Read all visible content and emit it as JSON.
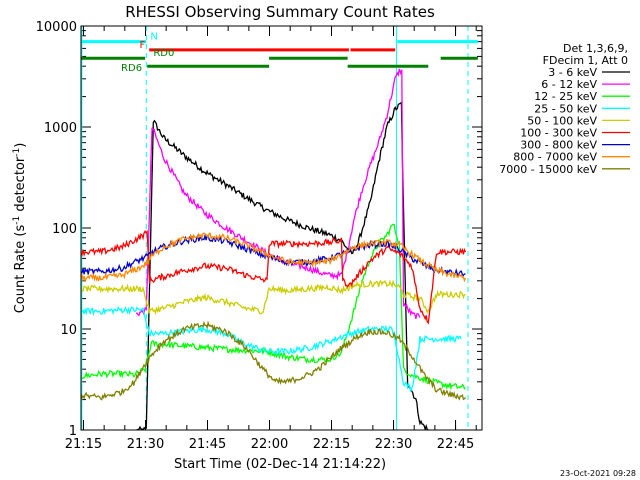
{
  "chart_data": {
    "type": "line",
    "title": "RHESSI Observing Summary Count Rates",
    "xlabel": "Start Time (02-Dec-14 21:14:22)",
    "ylabel_main": "Count Rate (s",
    "ylabel_sup1": "-1",
    "ylabel_mid": " detector",
    "ylabel_sup2": "-1",
    "ylabel_end": ")",
    "y_scale": "log",
    "x_range_minutes": [
      0,
      97
    ],
    "ylim": [
      1,
      10000
    ],
    "x_ticks": [
      {
        "label": "21:15",
        "t": 0.6
      },
      {
        "label": "21:30",
        "t": 15.6
      },
      {
        "label": "21:45",
        "t": 30.6
      },
      {
        "label": "22:00",
        "t": 45.6
      },
      {
        "label": "22:15",
        "t": 60.6
      },
      {
        "label": "22:30",
        "t": 75.6
      },
      {
        "label": "22:45",
        "t": 90.6
      }
    ],
    "y_ticks": [
      {
        "label": "1",
        "v": 1
      },
      {
        "label": "10",
        "v": 10
      },
      {
        "label": "100",
        "v": 100
      },
      {
        "label": "1000",
        "v": 1000
      },
      {
        "label": "10000",
        "v": 10000
      }
    ],
    "legend_header": [
      "Det 1,3,6,9,",
      "FDecim 1, Att 0"
    ],
    "series": [
      {
        "name": "3 - 6 keV",
        "color": "#000000",
        "points": [
          [
            13.5,
            1
          ],
          [
            15.8,
            1
          ],
          [
            17.5,
            1150
          ],
          [
            20,
            780
          ],
          [
            25,
            520
          ],
          [
            30,
            360
          ],
          [
            35,
            270
          ],
          [
            40,
            200
          ],
          [
            45,
            150
          ],
          [
            50,
            120
          ],
          [
            55,
            100
          ],
          [
            60,
            86
          ],
          [
            63,
            75
          ],
          [
            64.5,
            62
          ],
          [
            65.5,
            55
          ],
          [
            67,
            70
          ],
          [
            70,
            180
          ],
          [
            72,
            450
          ],
          [
            74,
            1000
          ],
          [
            76,
            1500
          ],
          [
            77.5,
            1700
          ],
          [
            78,
            150
          ],
          [
            79,
            3
          ],
          [
            81,
            2
          ],
          [
            82,
            1.2
          ],
          [
            84,
            1
          ]
        ]
      },
      {
        "name": "6 - 12 keV",
        "color": "#ff00ff",
        "points": [
          [
            13.3,
            14
          ],
          [
            15.2,
            15
          ],
          [
            15.8,
            15
          ],
          [
            17.2,
            1000
          ],
          [
            20,
            500
          ],
          [
            25,
            220
          ],
          [
            30,
            140
          ],
          [
            35,
            100
          ],
          [
            40,
            75
          ],
          [
            45,
            56
          ],
          [
            50,
            45
          ],
          [
            55,
            40
          ],
          [
            58,
            36
          ],
          [
            60,
            34
          ],
          [
            63,
            34
          ],
          [
            64.5,
            60
          ],
          [
            66,
            120
          ],
          [
            68,
            240
          ],
          [
            70,
            420
          ],
          [
            72,
            700
          ],
          [
            74,
            1300
          ],
          [
            76,
            3000
          ],
          [
            77,
            3600
          ],
          [
            77.6,
            3600
          ],
          [
            78,
            18
          ],
          [
            80,
            14
          ],
          [
            82,
            13
          ]
        ]
      },
      {
        "name": "12 - 25 keV",
        "color": "#00ff00",
        "points": [
          [
            0,
            3.4
          ],
          [
            5,
            3.6
          ],
          [
            10,
            3.6
          ],
          [
            13,
            3.5
          ],
          [
            15.5,
            4
          ],
          [
            17,
            7.2
          ],
          [
            25,
            6.8
          ],
          [
            35,
            6.3
          ],
          [
            45,
            6
          ],
          [
            50,
            5.3
          ],
          [
            55,
            5
          ],
          [
            60,
            5
          ],
          [
            63,
            5.8
          ],
          [
            66,
            15
          ],
          [
            68,
            30
          ],
          [
            70,
            50
          ],
          [
            72,
            70
          ],
          [
            74,
            85
          ],
          [
            75.5,
            110
          ],
          [
            77,
            70
          ],
          [
            78,
            4
          ],
          [
            80,
            3.5
          ],
          [
            85,
            3
          ],
          [
            88,
            2.8
          ],
          [
            93,
            2.6
          ]
        ]
      },
      {
        "name": "25 - 50 keV",
        "color": "#00ffff",
        "points": [
          [
            0,
            15
          ],
          [
            5,
            15
          ],
          [
            10,
            15.5
          ],
          [
            15,
            15.5
          ],
          [
            16.5,
            9
          ],
          [
            20,
            9
          ],
          [
            25,
            9.5
          ],
          [
            30,
            10
          ],
          [
            35,
            9
          ],
          [
            40,
            7
          ],
          [
            45,
            6
          ],
          [
            50,
            6
          ],
          [
            55,
            6.5
          ],
          [
            60,
            7.5
          ],
          [
            65,
            9
          ],
          [
            70,
            10
          ],
          [
            75,
            10
          ],
          [
            76,
            8
          ],
          [
            78,
            3
          ],
          [
            80,
            2.5
          ],
          [
            82,
            8
          ],
          [
            85,
            8
          ],
          [
            88,
            8
          ],
          [
            92,
            8
          ]
        ]
      },
      {
        "name": "50 - 100 keV",
        "color": "#cccc00",
        "points": [
          [
            0,
            25
          ],
          [
            5,
            25
          ],
          [
            10,
            25
          ],
          [
            15,
            25
          ],
          [
            16.5,
            15
          ],
          [
            20,
            16
          ],
          [
            25,
            18.5
          ],
          [
            30,
            20.5
          ],
          [
            35,
            18.5
          ],
          [
            40,
            16
          ],
          [
            44,
            15
          ],
          [
            45.5,
            25
          ],
          [
            50,
            24
          ],
          [
            55,
            25
          ],
          [
            60,
            26
          ],
          [
            63,
            24
          ],
          [
            66,
            27
          ],
          [
            70,
            28
          ],
          [
            75,
            28
          ],
          [
            77,
            26
          ],
          [
            78,
            22
          ],
          [
            82,
            20
          ],
          [
            84,
            15
          ],
          [
            86,
            22
          ],
          [
            88,
            22
          ],
          [
            93,
            22
          ]
        ]
      },
      {
        "name": "100 - 300 keV",
        "color": "#ff0000",
        "points": [
          [
            0,
            58
          ],
          [
            5,
            58
          ],
          [
            10,
            65
          ],
          [
            14,
            80
          ],
          [
            16,
            90
          ],
          [
            16.6,
            30
          ],
          [
            20,
            33
          ],
          [
            25,
            38
          ],
          [
            30,
            42
          ],
          [
            35,
            40
          ],
          [
            40,
            34
          ],
          [
            45,
            30
          ],
          [
            45.5,
            70
          ],
          [
            50,
            70
          ],
          [
            55,
            70
          ],
          [
            60,
            72
          ],
          [
            63,
            75
          ],
          [
            63.3,
            30
          ],
          [
            65,
            27
          ],
          [
            67,
            34
          ],
          [
            70,
            48
          ],
          [
            74,
            63
          ],
          [
            77,
            56
          ],
          [
            80,
            42
          ],
          [
            82,
            16
          ],
          [
            84,
            12
          ],
          [
            86,
            58
          ],
          [
            88,
            58
          ],
          [
            93,
            58
          ]
        ]
      },
      {
        "name": "300 - 800 keV",
        "color": "#0000cc",
        "points": [
          [
            0,
            37
          ],
          [
            5,
            37
          ],
          [
            10,
            40
          ],
          [
            14,
            48
          ],
          [
            16,
            52
          ],
          [
            17,
            57
          ],
          [
            20,
            65
          ],
          [
            25,
            75
          ],
          [
            30,
            80
          ],
          [
            35,
            74
          ],
          [
            40,
            62
          ],
          [
            45,
            52
          ],
          [
            50,
            46
          ],
          [
            55,
            46
          ],
          [
            60,
            50
          ],
          [
            63,
            55
          ],
          [
            66,
            62
          ],
          [
            70,
            68
          ],
          [
            74,
            70
          ],
          [
            77,
            62
          ],
          [
            80,
            50
          ],
          [
            83,
            43
          ],
          [
            86,
            38
          ],
          [
            90,
            36
          ],
          [
            93,
            35
          ]
        ]
      },
      {
        "name": "800 - 7000 keV",
        "color": "#ff8800",
        "points": [
          [
            0,
            32
          ],
          [
            5,
            32
          ],
          [
            10,
            34
          ],
          [
            14,
            40
          ],
          [
            16,
            45
          ],
          [
            17,
            52
          ],
          [
            20,
            65
          ],
          [
            25,
            78
          ],
          [
            30,
            85
          ],
          [
            35,
            80
          ],
          [
            40,
            68
          ],
          [
            45,
            55
          ],
          [
            50,
            46
          ],
          [
            55,
            45
          ],
          [
            60,
            47
          ],
          [
            63,
            55
          ],
          [
            66,
            65
          ],
          [
            70,
            70
          ],
          [
            74,
            72
          ],
          [
            77,
            68
          ],
          [
            80,
            55
          ],
          [
            83,
            45
          ],
          [
            86,
            38
          ],
          [
            90,
            34
          ],
          [
            93,
            32
          ]
        ]
      },
      {
        "name": "7000 - 15000 keV",
        "color": "#808000",
        "points": [
          [
            0,
            2.2
          ],
          [
            5,
            2.1
          ],
          [
            10,
            2.4
          ],
          [
            13,
            3
          ],
          [
            15,
            4.2
          ],
          [
            17,
            5.5
          ],
          [
            20,
            7.5
          ],
          [
            25,
            10
          ],
          [
            30,
            11
          ],
          [
            35,
            9.5
          ],
          [
            40,
            6.5
          ],
          [
            44,
            4
          ],
          [
            47,
            3
          ],
          [
            50,
            3
          ],
          [
            55,
            3.5
          ],
          [
            58,
            4.2
          ],
          [
            60,
            5
          ],
          [
            63,
            6.5
          ],
          [
            67,
            8.5
          ],
          [
            70,
            9.5
          ],
          [
            74,
            9.2
          ],
          [
            77,
            8
          ],
          [
            80,
            5.5
          ],
          [
            83,
            3.5
          ],
          [
            86,
            2.5
          ],
          [
            90,
            2.2
          ],
          [
            93,
            2.1
          ]
        ]
      }
    ],
    "state_bars": [
      {
        "label": "N",
        "color": "#00ffff",
        "level": 7000,
        "segments": [
          [
            0,
            15.8
          ],
          [
            76.5,
            96
          ]
        ]
      },
      {
        "label": "F",
        "color": "#ff0000",
        "level": 5800,
        "segments": [
          [
            16.5,
            64.8
          ],
          [
            65.2,
            76
          ]
        ]
      },
      {
        "label": "RD0",
        "color": "#008000",
        "level": 4800,
        "segments": [
          [
            0,
            15.5
          ],
          [
            45.5,
            64.5
          ],
          [
            87,
            96
          ]
        ]
      },
      {
        "label": "RD6",
        "color": "#008000",
        "level": 4000,
        "segments": [
          [
            16,
            45.5
          ],
          [
            64.5,
            84
          ]
        ]
      }
    ],
    "vertical_markers": [
      {
        "t": 0.2,
        "style": "solid",
        "color": "#00ffff"
      },
      {
        "t": 15.8,
        "style": "dashed",
        "color": "#00ffff"
      },
      {
        "t": 76.3,
        "style": "solid",
        "color": "#00ffff"
      },
      {
        "t": 93.6,
        "style": "dashed",
        "color": "#00ffff"
      }
    ],
    "footer": "23-Oct-2021 09:28"
  }
}
